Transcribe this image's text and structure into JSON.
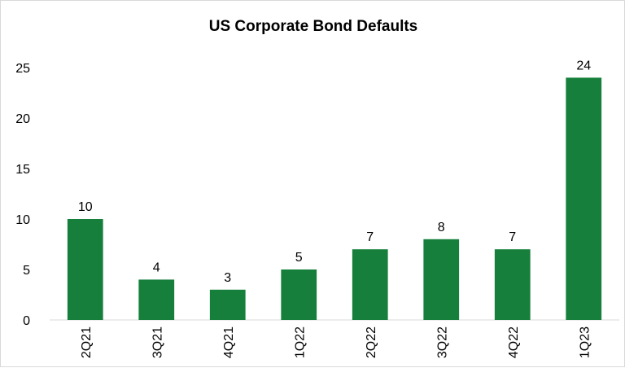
{
  "chart_data": {
    "type": "bar",
    "title": "US Corporate Bond Defaults",
    "xlabel": "",
    "ylabel": "",
    "categories": [
      "2Q21",
      "3Q21",
      "4Q21",
      "1Q22",
      "2Q22",
      "3Q22",
      "4Q22",
      "1Q23"
    ],
    "values": [
      10,
      4,
      3,
      5,
      7,
      8,
      7,
      24
    ],
    "ylim": [
      0,
      25
    ],
    "yticks": [
      0,
      5,
      10,
      15,
      20,
      25
    ],
    "data_labels": true,
    "grid": false,
    "legend": "none",
    "bar_color": "#157f3b",
    "x_tick_rotation": "vertical"
  }
}
